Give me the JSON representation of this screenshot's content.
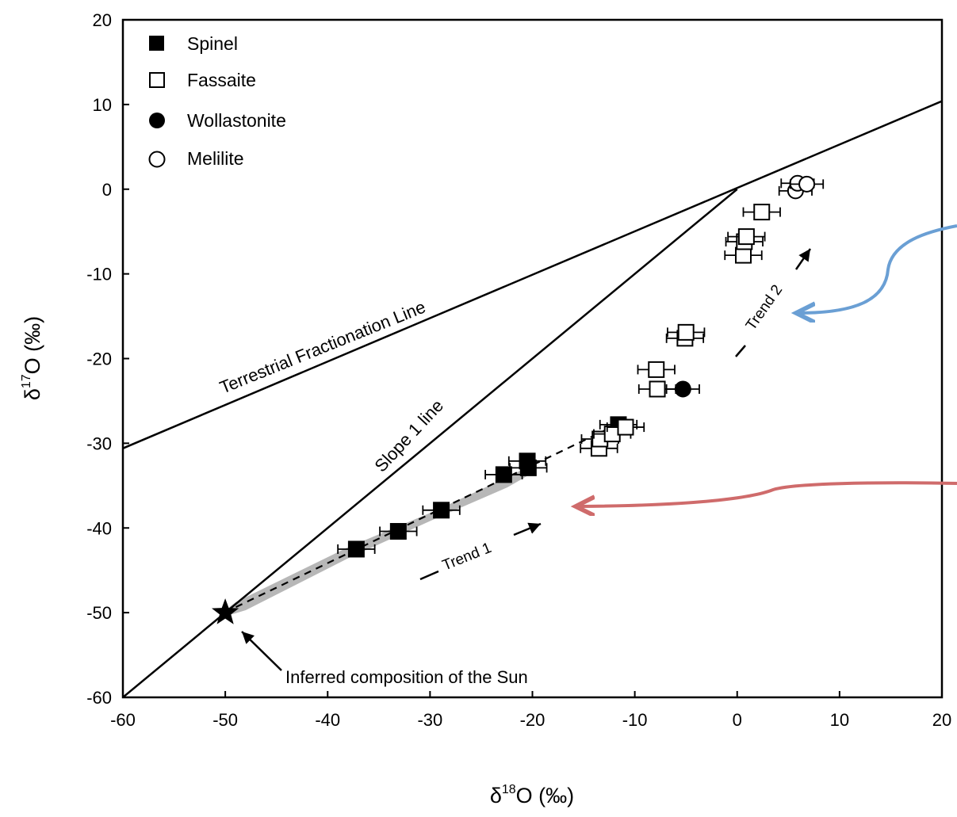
{
  "chart_data": {
    "type": "scatter",
    "xlabel_main": "δ",
    "xlabel_sup": "18",
    "xlabel_rest": "O (‰)",
    "ylabel_main": "δ",
    "ylabel_sup": "17",
    "ylabel_rest": "O (‰)",
    "xlim": [
      -60,
      20
    ],
    "ylim": [
      -60,
      20
    ],
    "xticks": [
      "-60",
      "-50",
      "-40",
      "-30",
      "-20",
      "-10",
      "0",
      "10",
      "20"
    ],
    "yticks": [
      "20",
      "10",
      "0",
      "-10",
      "-20",
      "-30",
      "-40",
      "-50",
      "-60"
    ],
    "legend_position": "top-left",
    "legend": [
      {
        "label": "Spinel",
        "marker": "filled-square"
      },
      {
        "label": "Fassaite",
        "marker": "open-square"
      },
      {
        "label": "Wollastonite",
        "marker": "filled-circle"
      },
      {
        "label": "Melilite",
        "marker": "open-circle"
      }
    ],
    "lines": [
      {
        "label": "Terrestrial Fractionation Line",
        "x": [
          -60,
          20
        ],
        "y": [
          -30.6,
          10.4
        ]
      },
      {
        "label": "Slope 1 line",
        "x": [
          -60,
          0
        ],
        "y": [
          -60,
          0
        ]
      }
    ],
    "annotations": {
      "trend1": "Trend 1",
      "trend2": "Trend 2",
      "sun": "Inferred composition of the Sun"
    },
    "sun_point": {
      "x": -50,
      "y": -50
    },
    "series": [
      {
        "name": "Spinel",
        "marker": "filled-square",
        "points": [
          {
            "x": -37.2,
            "y": -42.5,
            "xerr": 1.8
          },
          {
            "x": -33.1,
            "y": -40.4,
            "xerr": 1.8
          },
          {
            "x": -28.9,
            "y": -37.9,
            "xerr": 1.8
          },
          {
            "x": -22.8,
            "y": -33.7,
            "xerr": 1.8
          },
          {
            "x": -20.5,
            "y": -32.1,
            "xerr": 1.8
          },
          {
            "x": -20.4,
            "y": -32.9,
            "xerr": 1.8
          },
          {
            "x": -11.6,
            "y": -27.8,
            "xerr": 1.8
          }
        ]
      },
      {
        "name": "Fassaite",
        "marker": "open-square",
        "points": [
          {
            "x": -13.5,
            "y": -30.6,
            "xerr": 1.8
          },
          {
            "x": -13.4,
            "y": -29.5,
            "xerr": 1.8
          },
          {
            "x": -12.2,
            "y": -28.9,
            "xerr": 1.8
          },
          {
            "x": -10.9,
            "y": -28.1,
            "xerr": 1.8
          },
          {
            "x": -7.8,
            "y": -23.6,
            "xerr": 1.8
          },
          {
            "x": -7.9,
            "y": -21.3,
            "xerr": 1.8
          },
          {
            "x": -5.1,
            "y": -17.6,
            "xerr": 1.8
          },
          {
            "x": -5.0,
            "y": -16.9,
            "xerr": 1.8
          },
          {
            "x": 0.6,
            "y": -7.8,
            "xerr": 1.8
          },
          {
            "x": 0.7,
            "y": -6.2,
            "xerr": 1.8
          },
          {
            "x": 0.9,
            "y": -5.6,
            "xerr": 1.8
          },
          {
            "x": 2.4,
            "y": -2.7,
            "xerr": 1.8
          }
        ]
      },
      {
        "name": "Wollastonite",
        "marker": "filled-circle",
        "points": [
          {
            "x": -5.3,
            "y": -23.6,
            "xerr": 1.6
          }
        ]
      },
      {
        "name": "Melilite",
        "marker": "open-circle",
        "points": [
          {
            "x": 5.7,
            "y": -0.2,
            "xerr": 1.6
          },
          {
            "x": 5.9,
            "y": 0.7,
            "xerr": 1.6
          },
          {
            "x": 6.8,
            "y": 0.6,
            "xerr": 1.6
          }
        ]
      }
    ]
  }
}
